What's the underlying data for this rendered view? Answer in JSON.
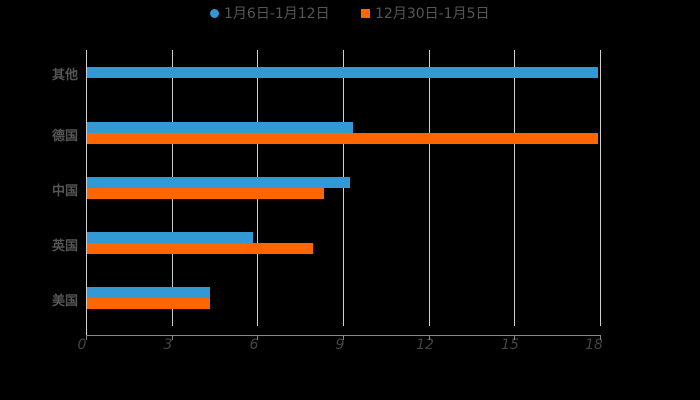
{
  "chart_data": {
    "type": "bar",
    "orientation": "horizontal",
    "title": "",
    "xlabel": "",
    "ylabel": "",
    "categories": [
      "其他",
      "德国",
      "中国",
      "英国",
      "美国"
    ],
    "series": [
      {
        "name": "1月6日-1月12日",
        "color": "#3399d4",
        "marker": "circle",
        "values": [
          17.9,
          9.3,
          9.2,
          5.8,
          4.3
        ]
      },
      {
        "name": "12月30日-1月5日",
        "color": "#ff6600",
        "marker": "square",
        "values": [
          0,
          17.9,
          8.3,
          7.9,
          4.3
        ]
      }
    ],
    "xlim": [
      0,
      18
    ],
    "xticks": [
      "0",
      "3",
      "6",
      "9",
      "12",
      "15",
      "18"
    ],
    "grid": "vertical",
    "legend_position": "top"
  },
  "legend": {
    "items": [
      {
        "label": "1月6日-1月12日",
        "color": "#3399d4"
      },
      {
        "label": "12月30日-1月5日",
        "color": "#ff6600"
      }
    ]
  },
  "axis": {
    "x_ticks": [
      "0",
      "3",
      "6",
      "9",
      "12",
      "15",
      "18"
    ],
    "y_categories": [
      "其他",
      "德国",
      "中国",
      "英国",
      "美国"
    ]
  },
  "colors": {
    "background": "#000000",
    "series1": "#3399d4",
    "series2": "#ff6600",
    "grid": "#cfcfcf",
    "text": "#555555"
  }
}
